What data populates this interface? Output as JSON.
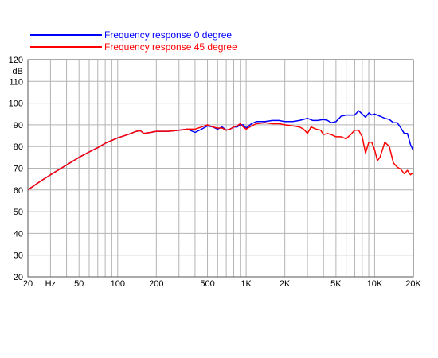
{
  "chart_data": {
    "type": "line",
    "title": "",
    "xlabel": "",
    "ylabel": "dB",
    "x_scale": "log",
    "xlim": [
      20,
      20000
    ],
    "ylim": [
      20,
      120
    ],
    "grid": true,
    "legend_position": "top-left",
    "x_ticks": [
      {
        "value": 20,
        "label": "20"
      },
      {
        "value": 30,
        "label": "Hz"
      },
      {
        "value": 50,
        "label": "50"
      },
      {
        "value": 100,
        "label": "100"
      },
      {
        "value": 200,
        "label": "200"
      },
      {
        "value": 500,
        "label": "500"
      },
      {
        "value": 1000,
        "label": "1K"
      },
      {
        "value": 2000,
        "label": "2K"
      },
      {
        "value": 5000,
        "label": "5K"
      },
      {
        "value": 10000,
        "label": "10K"
      },
      {
        "value": 20000,
        "label": "20K"
      }
    ],
    "y_ticks": [
      20,
      30,
      40,
      50,
      60,
      70,
      80,
      90,
      100,
      110,
      120
    ],
    "series": [
      {
        "name": "Frequency response 0 degree",
        "color": "#0000ff",
        "x": [
          20,
          25,
          30,
          40,
          50,
          60,
          70,
          80,
          100,
          120,
          140,
          150,
          160,
          180,
          200,
          250,
          300,
          350,
          400,
          450,
          500,
          550,
          600,
          650,
          700,
          750,
          800,
          850,
          900,
          950,
          1000,
          1100,
          1200,
          1400,
          1600,
          1800,
          2000,
          2300,
          2600,
          3000,
          3300,
          3600,
          4000,
          4300,
          4600,
          5000,
          5500,
          6000,
          6500,
          7000,
          7500,
          8000,
          8500,
          9000,
          9500,
          10000,
          11000,
          12000,
          13000,
          14000,
          15000,
          16000,
          17000,
          18000,
          19000,
          20000
        ],
        "values": [
          60,
          64,
          67,
          71.5,
          75,
          77.5,
          79.5,
          81.5,
          84,
          85.5,
          87,
          87.3,
          86,
          86.5,
          87,
          87,
          87.5,
          88,
          86.5,
          88,
          89.5,
          89,
          88,
          89,
          87.5,
          88,
          89,
          89,
          90,
          90,
          88.5,
          90.5,
          91.5,
          91.5,
          92,
          92,
          91.5,
          91.5,
          92,
          93,
          92,
          92,
          92.5,
          92,
          91,
          91.5,
          94,
          94.5,
          94.5,
          94.5,
          96.5,
          95,
          93.5,
          95.5,
          94.5,
          95,
          94,
          93,
          92.5,
          91,
          91,
          88.5,
          86,
          86,
          81,
          78
        ]
      },
      {
        "name": "Frequency response 45 degree",
        "color": "#ff0000",
        "x": [
          20,
          25,
          30,
          40,
          50,
          60,
          70,
          80,
          100,
          120,
          140,
          150,
          160,
          180,
          200,
          250,
          300,
          350,
          400,
          450,
          500,
          550,
          600,
          650,
          700,
          750,
          800,
          850,
          900,
          950,
          1000,
          1100,
          1200,
          1400,
          1600,
          1800,
          2000,
          2300,
          2600,
          2800,
          3000,
          3200,
          3500,
          3800,
          4000,
          4300,
          4600,
          5000,
          5500,
          6000,
          6500,
          7000,
          7500,
          8000,
          8500,
          9000,
          9500,
          10000,
          10500,
          11000,
          11500,
          12000,
          13000,
          14000,
          15000,
          16000,
          17000,
          18000,
          19000,
          20000
        ],
        "values": [
          60,
          64,
          67,
          71.5,
          75,
          77.5,
          79.5,
          81.5,
          84,
          85.5,
          87,
          87.3,
          86,
          86.5,
          87,
          87,
          87.5,
          88,
          88,
          89,
          90,
          89,
          88.5,
          88.5,
          87.5,
          88,
          89,
          89.5,
          90.5,
          89,
          88,
          89.5,
          90.5,
          91,
          90.5,
          90.5,
          90,
          89.5,
          89,
          88,
          86,
          89,
          88,
          87.5,
          85.5,
          86,
          85.5,
          84.5,
          84.5,
          83.5,
          85.5,
          87.5,
          87.5,
          84.5,
          77,
          82,
          82,
          78.5,
          73.5,
          75,
          78.5,
          82,
          80,
          72.5,
          70.5,
          69.5,
          67.5,
          69,
          67,
          68
        ]
      }
    ]
  }
}
